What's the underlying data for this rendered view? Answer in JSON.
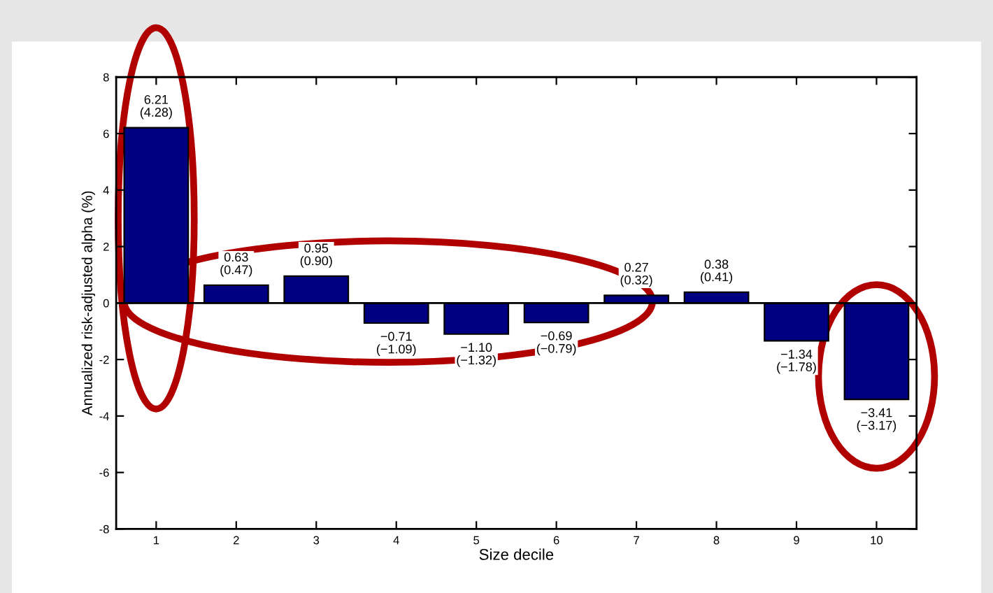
{
  "chart_data": {
    "type": "bar",
    "xlabel": "Size decile",
    "ylabel": "Annualized risk-adjusted alpha (%)",
    "categories": [
      "1",
      "2",
      "3",
      "4",
      "5",
      "6",
      "7",
      "8",
      "9",
      "10"
    ],
    "values": [
      6.21,
      0.63,
      0.95,
      -0.71,
      -1.1,
      -0.69,
      0.27,
      0.38,
      -1.34,
      -3.41
    ],
    "value_labels": [
      "6.21\n(4.28)",
      "0.63\n(0.47)",
      "0.95\n(0.90)",
      "−0.71\n(−1.09)",
      "−1.10\n(−1.32)",
      "−0.69\n(−0.79)",
      "0.27\n(0.32)",
      "0.38\n(0.41)",
      "−1.34\n(−1.78)",
      "−3.41\n(−3.17)"
    ],
    "color": "#000080",
    "ylim": [
      -8,
      8
    ],
    "yticks": [
      -8,
      -6,
      -4,
      -2,
      0,
      2,
      4,
      6,
      8
    ],
    "grid": false,
    "ref_lines": [
      {
        "axis": "y",
        "value": 0,
        "color": "#000000"
      }
    ]
  }
}
